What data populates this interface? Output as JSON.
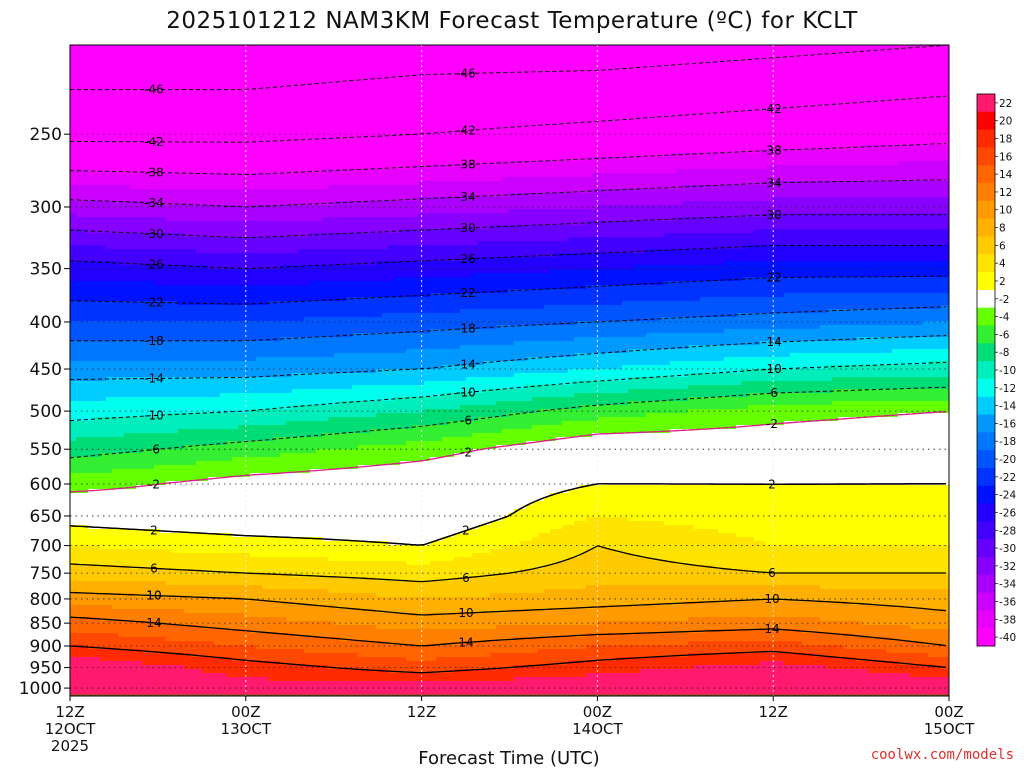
{
  "chart_data": {
    "type": "heatmap",
    "title": "2025101212 NAM3KM Forecast Temperature (ºC) for KCLT",
    "xlabel": "Forecast Time (UTC)",
    "ylabel": "",
    "x_ticks": [
      {
        "hour": 0,
        "line1": "12Z",
        "line2": "12OCT",
        "line3": "2025"
      },
      {
        "hour": 12,
        "line1": "00Z",
        "line2": "13OCT",
        "line3": ""
      },
      {
        "hour": 24,
        "line1": "12Z",
        "line2": "",
        "line3": ""
      },
      {
        "hour": 36,
        "line1": "00Z",
        "line2": "14OCT",
        "line3": ""
      },
      {
        "hour": 48,
        "line1": "12Z",
        "line2": "",
        "line3": ""
      },
      {
        "hour": 60,
        "line1": "00Z",
        "line2": "15OCT",
        "line3": ""
      }
    ],
    "xlim_hours": [
      0,
      60
    ],
    "y_ticks": [
      "250",
      "300",
      "350",
      "400",
      "450",
      "500",
      "550",
      "600",
      "650",
      "700",
      "750",
      "800",
      "850",
      "900",
      "950",
      "1000"
    ],
    "ylim_hpa": [
      200,
      1020
    ],
    "y_scale": "log",
    "colorbar": {
      "ticks": [
        "22",
        "20",
        "18",
        "16",
        "14",
        "12",
        "10",
        "8",
        "6",
        "4",
        "2",
        "-2",
        "-4",
        "-6",
        "-8",
        "-10",
        "-12",
        "-14",
        "-16",
        "-18",
        "-20",
        "-22",
        "-24",
        "-26",
        "-28",
        "-30",
        "-32",
        "-34",
        "-36",
        "-38",
        "-40"
      ],
      "colors": [
        "#ff1a6e",
        "#ff0000",
        "#ff2a00",
        "#ff4800",
        "#ff6600",
        "#ff8000",
        "#ff9a00",
        "#ffb000",
        "#ffca00",
        "#ffe400",
        "#ffff00",
        "#ffffff",
        "#66ff00",
        "#33ee33",
        "#00dd77",
        "#00eebb",
        "#00ffee",
        "#00ccff",
        "#0099ff",
        "#0077ff",
        "#0055ff",
        "#0033ff",
        "#0011ff",
        "#2200ff",
        "#4400ff",
        "#6600ff",
        "#8800ff",
        "#aa00ff",
        "#cc00ff",
        "#e800ff",
        "#ff00ff"
      ],
      "placement": "right"
    },
    "levels_hpa": [
      1000,
      950,
      900,
      850,
      800,
      750,
      700,
      650,
      600,
      550,
      500,
      450,
      400,
      350,
      300,
      250,
      200
    ],
    "series": [
      {
        "values": [
          22,
          22,
          18,
          15,
          11,
          7,
          4,
          1,
          -3,
          -7,
          -11,
          -15,
          -20,
          -25,
          -33,
          -43,
          -49
        ]
      },
      {
        "values": [
          21,
          19,
          16,
          13,
          10,
          6,
          3,
          0,
          -1,
          -5,
          -10,
          -15,
          -20,
          -26,
          -34,
          -43,
          -49
        ]
      },
      {
        "values": [
          21,
          17,
          14,
          11,
          8,
          5,
          2,
          0,
          0,
          -3,
          -8,
          -14,
          -19,
          -25,
          -33,
          -42,
          -48
        ]
      },
      {
        "values": [
          22,
          19,
          16,
          12,
          9,
          7,
          6,
          4,
          2,
          0,
          -5,
          -12,
          -18,
          -24,
          -32,
          -41,
          -48
        ]
      },
      {
        "values": [
          24,
          21,
          17,
          13,
          10,
          6,
          4,
          3,
          2,
          0,
          -3,
          -10,
          -17,
          -23,
          -31,
          -40,
          -47
        ]
      },
      {
        "values": [
          22,
          18,
          14,
          11,
          9,
          6,
          4,
          3,
          2,
          1,
          -2,
          -9,
          -16,
          -23,
          -31,
          -39,
          -46
        ]
      }
    ],
    "contour_labels": [
      "-46",
      "-46",
      "-42",
      "-42",
      "-42",
      "-38",
      "-38",
      "-38",
      "-34",
      "-34",
      "-34",
      "-30",
      "-30",
      "-30",
      "-26",
      "-26",
      "-22",
      "-22",
      "-22",
      "-18",
      "-18",
      "-14",
      "-14",
      "-14",
      "-10",
      "-10",
      "-10",
      "-6",
      "-6",
      "-6",
      "-2",
      "-2",
      "-2",
      "2",
      "2",
      "2",
      "6",
      "6",
      "6",
      "10",
      "10",
      "10",
      "10",
      "14",
      "14",
      "14"
    ]
  },
  "footer": {
    "credit": "coolwx.com/models"
  }
}
